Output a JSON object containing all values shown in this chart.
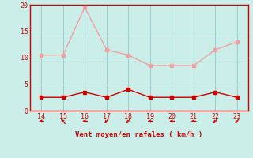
{
  "hours": [
    14,
    15,
    16,
    17,
    18,
    19,
    20,
    21,
    22,
    23
  ],
  "rafales": [
    10.5,
    10.5,
    19.5,
    11.5,
    10.5,
    8.5,
    8.5,
    8.5,
    11.5,
    13.0
  ],
  "vent_moyen": [
    2.5,
    2.5,
    3.5,
    2.5,
    4.0,
    2.5,
    2.5,
    2.5,
    3.5,
    2.5
  ],
  "arrow_angles_deg": [
    270,
    225,
    270,
    315,
    315,
    270,
    270,
    270,
    315,
    315
  ],
  "rafales_color": "#f0a0a0",
  "vent_color": "#cc0000",
  "bg_color": "#cceee8",
  "grid_color": "#99cccc",
  "axis_color": "#cc0000",
  "text_color": "#cc0000",
  "xlabel": "Vent moyen/en rafales ( km/h )",
  "xlim": [
    13.5,
    23.5
  ],
  "ylim": [
    0,
    20
  ],
  "yticks": [
    0,
    5,
    10,
    15,
    20
  ],
  "xticks": [
    14,
    15,
    16,
    17,
    18,
    19,
    20,
    21,
    22,
    23
  ]
}
